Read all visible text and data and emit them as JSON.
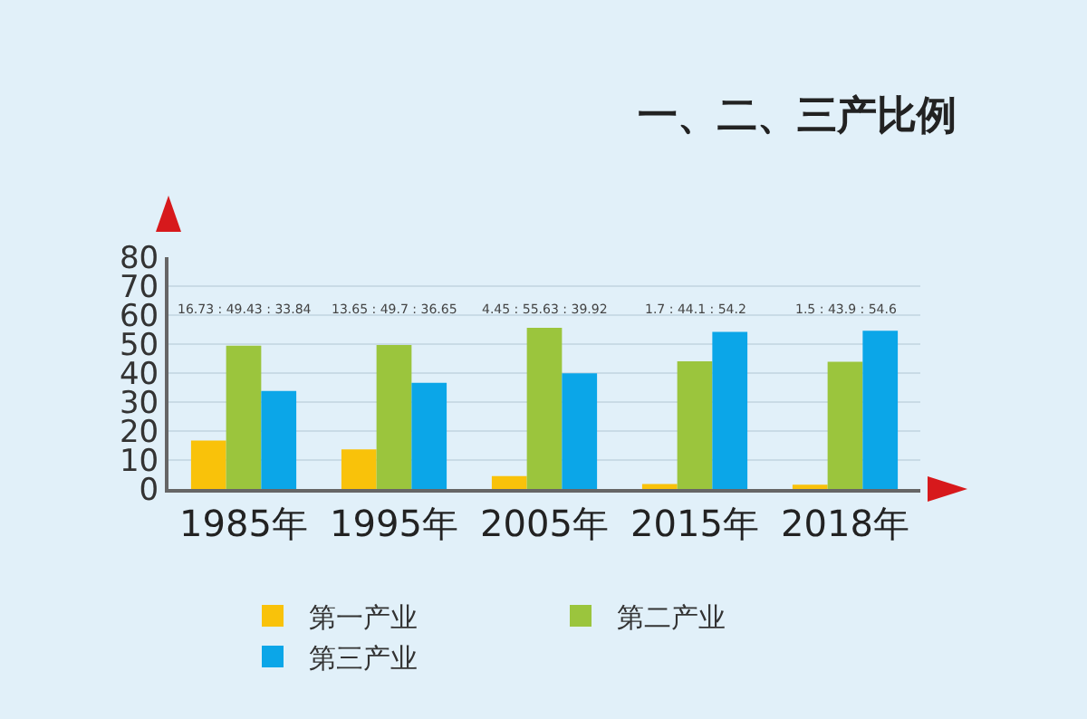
{
  "chart_data": {
    "type": "bar",
    "title": "一、二、三产比例",
    "categories": [
      "1985年",
      "1995年",
      "2005年",
      "2015年",
      "2018年"
    ],
    "series": [
      {
        "name": "第一产业",
        "color": "#f9c20a",
        "values": [
          16.73,
          13.65,
          4.45,
          1.7,
          1.5
        ]
      },
      {
        "name": "第二产业",
        "color": "#9bc53d",
        "values": [
          49.43,
          49.7,
          55.63,
          44.1,
          43.9
        ]
      },
      {
        "name": "第三产业",
        "color": "#0ba6e8",
        "values": [
          33.84,
          36.65,
          39.92,
          54.2,
          54.6
        ]
      }
    ],
    "ylim": [
      0,
      80
    ],
    "yticks": [
      0,
      10,
      20,
      30,
      40,
      50,
      60,
      70,
      80
    ],
    "grid": "y",
    "legend": "bottom",
    "annotations": [
      "16.73 : 49.43 : 33.84",
      "13.65 : 49.7 : 36.65",
      "4.45 : 55.63 : 39.92",
      "1.7 : 44.1 : 54.2",
      "1.5 : 43.9 : 54.6"
    ]
  }
}
